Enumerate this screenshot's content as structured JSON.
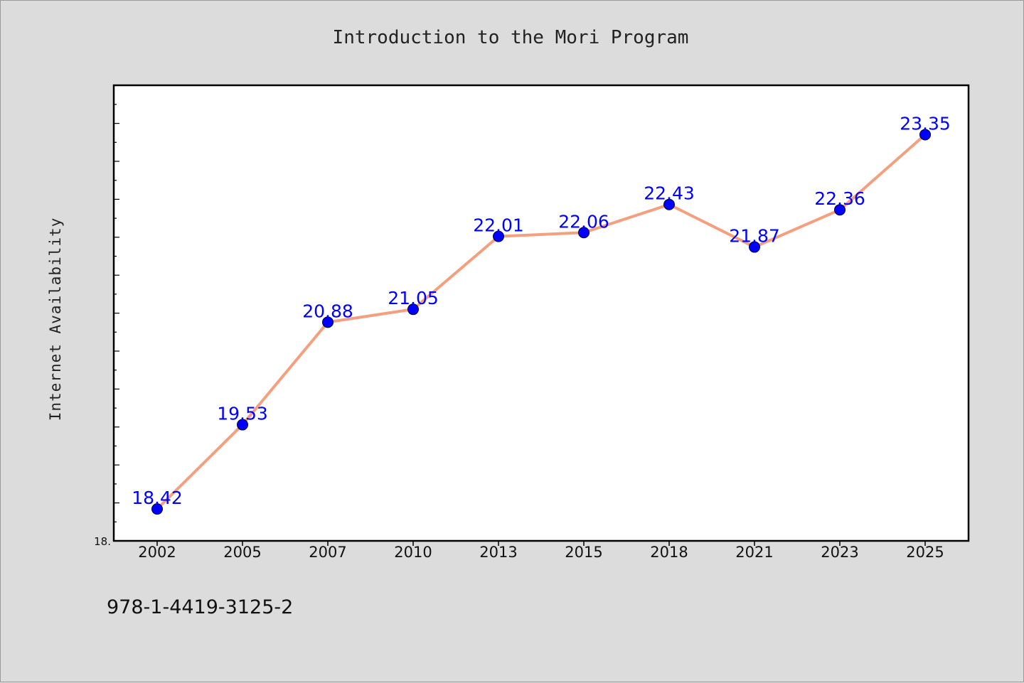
{
  "chart_data": {
    "type": "line",
    "title": "Introduction to the Mori Program",
    "xlabel": "",
    "ylabel": "Internet Availability",
    "categories": [
      "2002",
      "2005",
      "2007",
      "2010",
      "2013",
      "2015",
      "2018",
      "2021",
      "2023",
      "2025"
    ],
    "series": [
      {
        "values": [
          18.42,
          19.53,
          20.88,
          21.05,
          22.01,
          22.06,
          22.43,
          21.87,
          22.36,
          23.35
        ]
      }
    ],
    "data_labels": [
      "18.42",
      "19.53",
      "20.88",
      "21.05",
      "22.01",
      "22.06",
      "22.43",
      "21.87",
      "22.36",
      "23.35"
    ],
    "ylim": [
      18.0,
      24.0
    ],
    "y_tick_label": "18.",
    "grid": false,
    "line_color": "#f4a07f",
    "marker_color": "#0000ff",
    "label_color": "#0000ff"
  },
  "footer": {
    "isbn": "978-1-4419-3125-2"
  }
}
